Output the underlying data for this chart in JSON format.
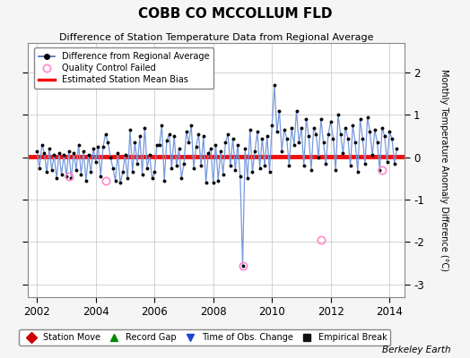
{
  "title": "COBB CO MCCOLLUM FLD",
  "subtitle": "Difference of Station Temperature Data from Regional Average",
  "ylabel": "Monthly Temperature Anomaly Difference (°C)",
  "xlim": [
    2001.7,
    2014.5
  ],
  "ylim": [
    -3.3,
    2.7
  ],
  "yticks": [
    -3,
    -2,
    -1,
    0,
    1,
    2
  ],
  "xticks": [
    2002,
    2004,
    2006,
    2008,
    2010,
    2012,
    2014
  ],
  "bias_line": 0.02,
  "line_color": "#7799dd",
  "dot_color": "#000000",
  "bias_color": "#ee1111",
  "bg_color": "#f5f5f5",
  "plot_bg": "#ffffff",
  "grid_color": "#cccccc",
  "watermark": "Berkeley Earth",
  "legend_items": [
    {
      "label": "Difference from Regional Average",
      "color": "#4466bb",
      "type": "line"
    },
    {
      "label": "Quality Control Failed",
      "color": "#ff88bb",
      "type": "circle"
    },
    {
      "label": "Estimated Station Mean Bias",
      "color": "#ee1111",
      "type": "line"
    }
  ],
  "bottom_legend_items": [
    {
      "label": "Station Move",
      "color": "#cc0000",
      "marker": "D"
    },
    {
      "label": "Record Gap",
      "color": "#008800",
      "marker": "^"
    },
    {
      "label": "Time of Obs. Change",
      "color": "#2244cc",
      "marker": "v"
    },
    {
      "label": "Empirical Break",
      "color": "#111111",
      "marker": "s"
    }
  ],
  "data_x": [
    2002.0,
    2002.083,
    2002.167,
    2002.25,
    2002.333,
    2002.417,
    2002.5,
    2002.583,
    2002.667,
    2002.75,
    2002.833,
    2002.917,
    2003.0,
    2003.083,
    2003.167,
    2003.25,
    2003.333,
    2003.417,
    2003.5,
    2003.583,
    2003.667,
    2003.75,
    2003.833,
    2003.917,
    2004.0,
    2004.083,
    2004.167,
    2004.25,
    2004.333,
    2004.417,
    2004.5,
    2004.583,
    2004.667,
    2004.75,
    2004.833,
    2004.917,
    2005.0,
    2005.083,
    2005.167,
    2005.25,
    2005.333,
    2005.417,
    2005.5,
    2005.583,
    2005.667,
    2005.75,
    2005.833,
    2005.917,
    2006.0,
    2006.083,
    2006.167,
    2006.25,
    2006.333,
    2006.417,
    2006.5,
    2006.583,
    2006.667,
    2006.75,
    2006.833,
    2006.917,
    2007.0,
    2007.083,
    2007.167,
    2007.25,
    2007.333,
    2007.417,
    2007.5,
    2007.583,
    2007.667,
    2007.75,
    2007.833,
    2007.917,
    2008.0,
    2008.083,
    2008.167,
    2008.25,
    2008.333,
    2008.417,
    2008.5,
    2008.583,
    2008.667,
    2008.75,
    2008.833,
    2008.917,
    2009.0,
    2009.083,
    2009.167,
    2009.25,
    2009.333,
    2009.417,
    2009.5,
    2009.583,
    2009.667,
    2009.75,
    2009.833,
    2009.917,
    2010.0,
    2010.083,
    2010.167,
    2010.25,
    2010.333,
    2010.417,
    2010.5,
    2010.583,
    2010.667,
    2010.75,
    2010.833,
    2010.917,
    2011.0,
    2011.083,
    2011.167,
    2011.25,
    2011.333,
    2011.417,
    2011.5,
    2011.583,
    2011.667,
    2011.75,
    2011.833,
    2011.917,
    2012.0,
    2012.083,
    2012.167,
    2012.25,
    2012.333,
    2012.417,
    2012.5,
    2012.583,
    2012.667,
    2012.75,
    2012.833,
    2012.917,
    2013.0,
    2013.083,
    2013.167,
    2013.25,
    2013.333,
    2013.417,
    2013.5,
    2013.583,
    2013.667,
    2013.75,
    2013.833,
    2013.917,
    2014.0,
    2014.083,
    2014.167,
    2014.25
  ],
  "data_y": [
    0.15,
    -0.25,
    0.3,
    0.1,
    -0.35,
    0.2,
    -0.3,
    0.05,
    -0.5,
    0.1,
    -0.4,
    0.05,
    -0.45,
    0.15,
    -0.5,
    0.1,
    -0.3,
    0.3,
    -0.4,
    0.15,
    -0.55,
    0.05,
    -0.35,
    0.2,
    -0.1,
    0.25,
    -0.45,
    0.25,
    0.55,
    0.35,
    0.0,
    -0.25,
    -0.55,
    0.1,
    -0.6,
    -0.35,
    0.05,
    -0.5,
    0.65,
    -0.35,
    0.35,
    -0.15,
    0.5,
    -0.4,
    0.7,
    -0.25,
    0.05,
    -0.5,
    -0.35,
    0.3,
    0.3,
    0.75,
    -0.55,
    0.4,
    0.55,
    -0.25,
    0.5,
    -0.2,
    0.2,
    -0.5,
    -0.15,
    0.6,
    0.35,
    0.75,
    -0.25,
    0.25,
    0.55,
    -0.2,
    0.5,
    -0.6,
    0.1,
    0.2,
    -0.6,
    0.3,
    -0.55,
    0.15,
    -0.4,
    0.35,
    0.55,
    -0.2,
    0.45,
    -0.3,
    0.3,
    -0.45,
    -2.55,
    0.2,
    -0.5,
    0.65,
    -0.35,
    0.15,
    0.6,
    -0.25,
    0.45,
    -0.2,
    0.5,
    -0.35,
    0.75,
    1.7,
    0.6,
    1.1,
    0.15,
    0.65,
    0.45,
    -0.2,
    0.7,
    0.3,
    1.1,
    0.35,
    0.7,
    -0.2,
    0.9,
    0.5,
    -0.3,
    0.7,
    0.55,
    0.0,
    0.9,
    0.35,
    -0.15,
    0.55,
    0.85,
    0.45,
    -0.3,
    1.0,
    0.55,
    0.1,
    0.7,
    0.45,
    -0.2,
    0.75,
    0.35,
    -0.35,
    0.9,
    0.45,
    -0.15,
    0.95,
    0.6,
    0.05,
    0.65,
    0.35,
    -0.3,
    0.7,
    0.5,
    -0.1,
    0.6,
    0.45,
    -0.15,
    0.2
  ],
  "qc_failed_x": [
    2003.083,
    2004.333,
    2009.0,
    2011.667,
    2013.75
  ],
  "qc_failed_y": [
    -0.45,
    -0.55,
    -2.55,
    -1.95,
    -0.3
  ]
}
